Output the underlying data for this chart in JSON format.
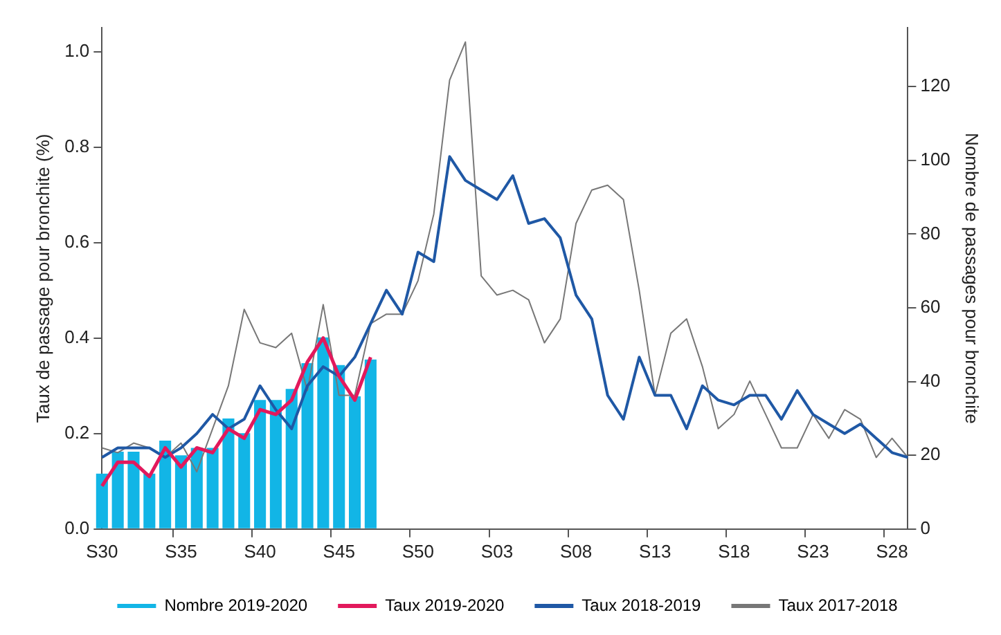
{
  "chart_data": {
    "type": "line",
    "ylabel": "Taux de passage pour bronchite (%)",
    "y2label": "Nombre de passages pour bronchite",
    "categories": [
      "S30",
      null,
      null,
      null,
      null,
      "S35",
      null,
      null,
      null,
      null,
      "S40",
      null,
      null,
      null,
      null,
      "S45",
      null,
      null,
      null,
      null,
      "S50",
      null,
      null,
      null,
      null,
      "S03",
      null,
      null,
      null,
      null,
      "S08",
      null,
      null,
      null,
      null,
      "S13",
      null,
      null,
      null,
      null,
      "S18",
      null,
      null,
      null,
      null,
      "S23",
      null,
      null,
      null,
      null,
      "S28",
      null
    ],
    "ylim": [
      0,
      1.05
    ],
    "yticks": [
      {
        "value": 0,
        "label": "0.0"
      },
      {
        "value": 0.2,
        "label": "0.2"
      },
      {
        "value": 0.4,
        "label": "0.4"
      },
      {
        "value": 0.6,
        "label": "0.6"
      },
      {
        "value": 0.8,
        "label": "0.8"
      },
      {
        "value": 1,
        "label": "1.0"
      }
    ],
    "y2lim": [
      0,
      136
    ],
    "y2ticks": [
      0,
      20,
      40,
      60,
      80,
      100,
      120
    ],
    "legend": "bottom",
    "series": [
      {
        "name": "Nombre 2019-2020",
        "type": "bar",
        "axis": "y2",
        "color": "#12b5e6",
        "values": [
          15,
          21,
          21,
          15,
          24,
          20,
          22,
          22,
          30,
          26,
          35,
          35,
          38,
          45,
          52,
          44.5,
          36,
          46,
          null,
          null,
          null,
          null,
          null,
          null,
          null,
          null,
          null,
          null,
          null,
          null,
          null,
          null,
          null,
          null,
          null,
          null,
          null,
          null,
          null,
          null,
          null,
          null,
          null,
          null,
          null,
          null,
          null,
          null,
          null,
          null,
          null,
          null
        ]
      },
      {
        "name": "Taux 2019-2020",
        "color": "#e2195c",
        "values": [
          0.09,
          0.14,
          0.14,
          0.11,
          0.17,
          0.13,
          0.17,
          0.16,
          0.21,
          0.19,
          0.25,
          0.24,
          0.27,
          0.35,
          0.4,
          0.32,
          0.27,
          0.36,
          null,
          null,
          null,
          null,
          null,
          null,
          null,
          null,
          null,
          null,
          null,
          null,
          null,
          null,
          null,
          null,
          null,
          null,
          null,
          null,
          null,
          null,
          null,
          null,
          null,
          null,
          null,
          null,
          null,
          null,
          null,
          null,
          null,
          null
        ]
      },
      {
        "name": "Taux 2018-2019",
        "color": "#1f58a5",
        "values": [
          0.15,
          0.17,
          0.17,
          0.17,
          0.15,
          0.17,
          0.2,
          0.24,
          0.21,
          0.23,
          0.3,
          0.25,
          0.21,
          0.3,
          0.34,
          0.32,
          0.36,
          0.43,
          0.5,
          0.45,
          0.58,
          0.56,
          0.78,
          0.73,
          0.71,
          0.69,
          0.74,
          0.64,
          0.65,
          0.61,
          0.49,
          0.44,
          0.28,
          0.23,
          0.36,
          0.28,
          0.28,
          0.21,
          0.3,
          0.27,
          0.26,
          0.28,
          0.28,
          0.23,
          0.29,
          0.24,
          0.22,
          0.2,
          0.22,
          0.19,
          0.16,
          0.15
        ]
      },
      {
        "name": "Taux 2017-2018",
        "color": "#777777",
        "values": [
          0.17,
          0.16,
          0.18,
          0.17,
          0.15,
          0.18,
          0.12,
          0.21,
          0.3,
          0.46,
          0.39,
          0.38,
          0.41,
          0.29,
          0.47,
          0.28,
          0.28,
          0.43,
          0.45,
          0.45,
          0.52,
          0.66,
          0.94,
          1.02,
          0.53,
          0.49,
          0.5,
          0.48,
          0.39,
          0.44,
          0.64,
          0.71,
          0.72,
          0.69,
          0.5,
          0.28,
          0.41,
          0.44,
          0.34,
          0.21,
          0.24,
          0.31,
          0.24,
          0.17,
          0.17,
          0.24,
          0.19,
          0.25,
          0.23,
          0.15,
          0.19,
          0.15
        ]
      }
    ]
  }
}
